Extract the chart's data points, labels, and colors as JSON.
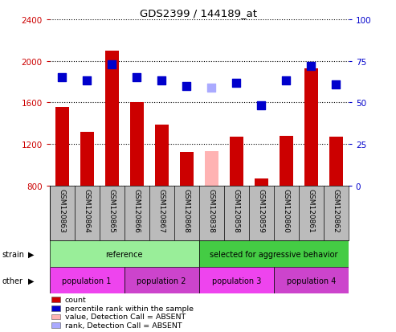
{
  "title": "GDS2399 / 144189_at",
  "samples": [
    "GSM120863",
    "GSM120864",
    "GSM120865",
    "GSM120866",
    "GSM120867",
    "GSM120868",
    "GSM120838",
    "GSM120858",
    "GSM120859",
    "GSM120860",
    "GSM120861",
    "GSM120862"
  ],
  "bar_values": [
    1560,
    1320,
    2100,
    1600,
    1390,
    1120,
    1130,
    1270,
    870,
    1280,
    1930,
    1270
  ],
  "bar_colors": [
    "#cc0000",
    "#cc0000",
    "#cc0000",
    "#cc0000",
    "#cc0000",
    "#cc0000",
    "#ffb3b3",
    "#cc0000",
    "#cc0000",
    "#cc0000",
    "#cc0000",
    "#cc0000"
  ],
  "rank_values": [
    65,
    63,
    73,
    65,
    63,
    60,
    59,
    62,
    48,
    63,
    72,
    61
  ],
  "rank_colors": [
    "#0000cc",
    "#0000cc",
    "#0000cc",
    "#0000cc",
    "#0000cc",
    "#0000cc",
    "#aaaaff",
    "#0000cc",
    "#0000cc",
    "#0000cc",
    "#0000cc",
    "#0000cc"
  ],
  "ylim_left": [
    800,
    2400
  ],
  "ylim_right": [
    0,
    100
  ],
  "yticks_left": [
    800,
    1200,
    1600,
    2000,
    2400
  ],
  "yticks_right": [
    0,
    25,
    50,
    75,
    100
  ],
  "strain_groups": [
    {
      "label": "reference",
      "color": "#99ee99",
      "start": 0,
      "end": 6
    },
    {
      "label": "selected for aggressive behavior",
      "color": "#44cc44",
      "start": 6,
      "end": 12
    }
  ],
  "other_groups": [
    {
      "label": "population 1",
      "color": "#ee44ee",
      "start": 0,
      "end": 3
    },
    {
      "label": "population 2",
      "color": "#cc44cc",
      "start": 3,
      "end": 6
    },
    {
      "label": "population 3",
      "color": "#ee44ee",
      "start": 6,
      "end": 9
    },
    {
      "label": "population 4",
      "color": "#cc44cc",
      "start": 9,
      "end": 12
    }
  ],
  "legend_items": [
    {
      "label": "count",
      "color": "#cc0000"
    },
    {
      "label": "percentile rank within the sample",
      "color": "#0000cc"
    },
    {
      "label": "value, Detection Call = ABSENT",
      "color": "#ffb3b3"
    },
    {
      "label": "rank, Detection Call = ABSENT",
      "color": "#aaaaff"
    }
  ],
  "bar_width": 0.55,
  "rank_marker_size": 45,
  "background_color": "#ffffff",
  "plot_bg_color": "#ffffff",
  "label_color_left": "#cc0000",
  "label_color_right": "#0000cc",
  "grid_color": "#000000",
  "xtick_bg_color": "#bbbbbb"
}
